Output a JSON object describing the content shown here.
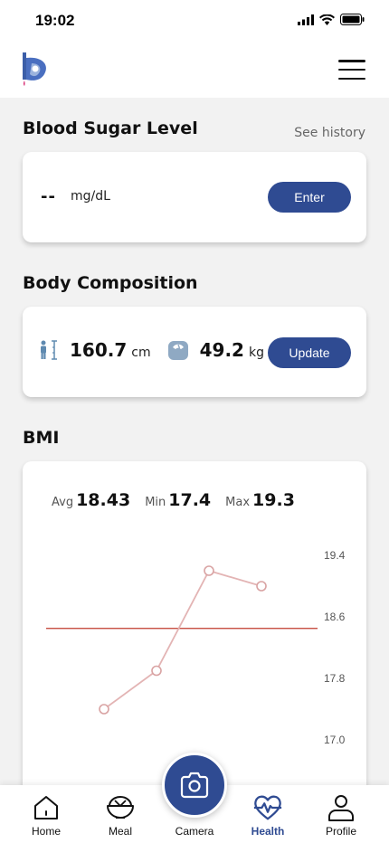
{
  "status_bar": {
    "time": "19:02"
  },
  "header": {
    "logo_icon": "app-logo-icon",
    "menu_icon": "hamburger-menu-icon"
  },
  "blood_sugar": {
    "title": "Blood Sugar Level",
    "see_history": "See history",
    "value": "--",
    "unit": "mg/dL",
    "button": "Enter"
  },
  "body_composition": {
    "title": "Body Composition",
    "height_icon": "height-icon",
    "height_value": "160.7",
    "height_unit": "cm",
    "weight_icon": "weight-icon",
    "weight_value": "49.2",
    "weight_unit": "kg",
    "button": "Update"
  },
  "bmi": {
    "title": "BMI",
    "avg_label": "Avg",
    "avg_value": "18.43",
    "min_label": "Min",
    "min_value": "17.4",
    "max_label": "Max",
    "max_value": "19.3"
  },
  "chart_data": {
    "type": "line",
    "title": "",
    "xlabel": "",
    "ylabel": "",
    "y_ticks": [
      "19.4",
      "18.6",
      "17.8",
      "17.0"
    ],
    "ylim": [
      17.0,
      19.4
    ],
    "series": [
      {
        "values": [
          17.4,
          17.9,
          19.2,
          19.0
        ],
        "color": "#e3b4b4"
      }
    ],
    "reference_line": {
      "value": 18.45,
      "color": "#c0392b"
    },
    "axis_position": "right",
    "grid": false
  },
  "bottom_nav": {
    "items": [
      {
        "label": "Home",
        "icon": "home-icon",
        "active": false
      },
      {
        "label": "Meal",
        "icon": "meal-bowl-icon",
        "active": false
      },
      {
        "label": "Camera",
        "icon": "camera-icon",
        "active": false
      },
      {
        "label": "Health",
        "icon": "heart-pulse-icon",
        "active": true
      },
      {
        "label": "Profile",
        "icon": "profile-icon",
        "active": false
      }
    ]
  },
  "colors": {
    "accent": "#2f4b92",
    "background": "#f2f2f2",
    "line": "#e3b4b4",
    "reference": "#c0392b"
  }
}
